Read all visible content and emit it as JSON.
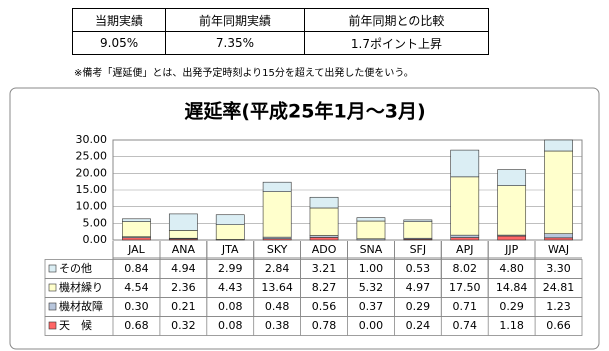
{
  "summary_table": {
    "headers": [
      "当期実績",
      "前年同期実績",
      "前年同期との比較"
    ],
    "values": [
      "9.05%",
      "7.35%",
      "1.7ポイント上昇"
    ]
  },
  "note": "※備考「遅延便」とは、出発予定時刻より15分を超えて出発した便をいう。",
  "chart_data": {
    "type": "stacked_bar",
    "title": "遅延率(平成25年1月～3月)",
    "categories": [
      "JAL",
      "ANA",
      "JTA",
      "SKY",
      "ADO",
      "SNA",
      "SFJ",
      "APJ",
      "JJP",
      "WAJ"
    ],
    "series": [
      {
        "name": "その他",
        "color": "#dbeef4",
        "values": [
          0.84,
          4.94,
          2.99,
          2.84,
          3.21,
          1.0,
          0.53,
          8.02,
          4.8,
          3.3
        ],
        "value_labels": [
          "0.84",
          "4.94",
          "2.99",
          "2.84",
          "3.21",
          "1.00",
          "0.53",
          "8.02",
          "4.80",
          "3.30"
        ]
      },
      {
        "name": "機材繰り",
        "color": "#ffffcc",
        "values": [
          4.54,
          2.36,
          4.43,
          13.64,
          8.27,
          5.32,
          4.97,
          17.5,
          14.84,
          24.81
        ],
        "value_labels": [
          "4.54",
          "2.36",
          "4.43",
          "13.64",
          "8.27",
          "5.32",
          "4.97",
          "17.50",
          "14.84",
          "24.81"
        ]
      },
      {
        "name": "機材故障",
        "color": "#b8c6dc",
        "values": [
          0.3,
          0.21,
          0.08,
          0.48,
          0.56,
          0.37,
          0.29,
          0.71,
          0.29,
          1.23
        ],
        "value_labels": [
          "0.30",
          "0.21",
          "0.08",
          "0.48",
          "0.56",
          "0.37",
          "0.29",
          "0.71",
          "0.29",
          "1.23"
        ]
      },
      {
        "name": "天　候",
        "color": "#ff6666",
        "values": [
          0.68,
          0.32,
          0.08,
          0.38,
          0.78,
          0.0,
          0.24,
          0.74,
          1.18,
          0.66
        ],
        "value_labels": [
          "0.68",
          "0.32",
          "0.08",
          "0.38",
          "0.78",
          "0.00",
          "0.24",
          "0.74",
          "1.18",
          "0.66"
        ]
      }
    ],
    "ylim": [
      0,
      30
    ],
    "yticks": [
      {
        "value": 0,
        "label": "0.00"
      },
      {
        "value": 5,
        "label": "5.00"
      },
      {
        "value": 10,
        "label": "10.00"
      },
      {
        "value": 15,
        "label": "15.00"
      },
      {
        "value": 20,
        "label": "20.00"
      },
      {
        "value": 25,
        "label": "25.00"
      },
      {
        "value": 30,
        "label": "30.00"
      }
    ],
    "grid": true
  }
}
